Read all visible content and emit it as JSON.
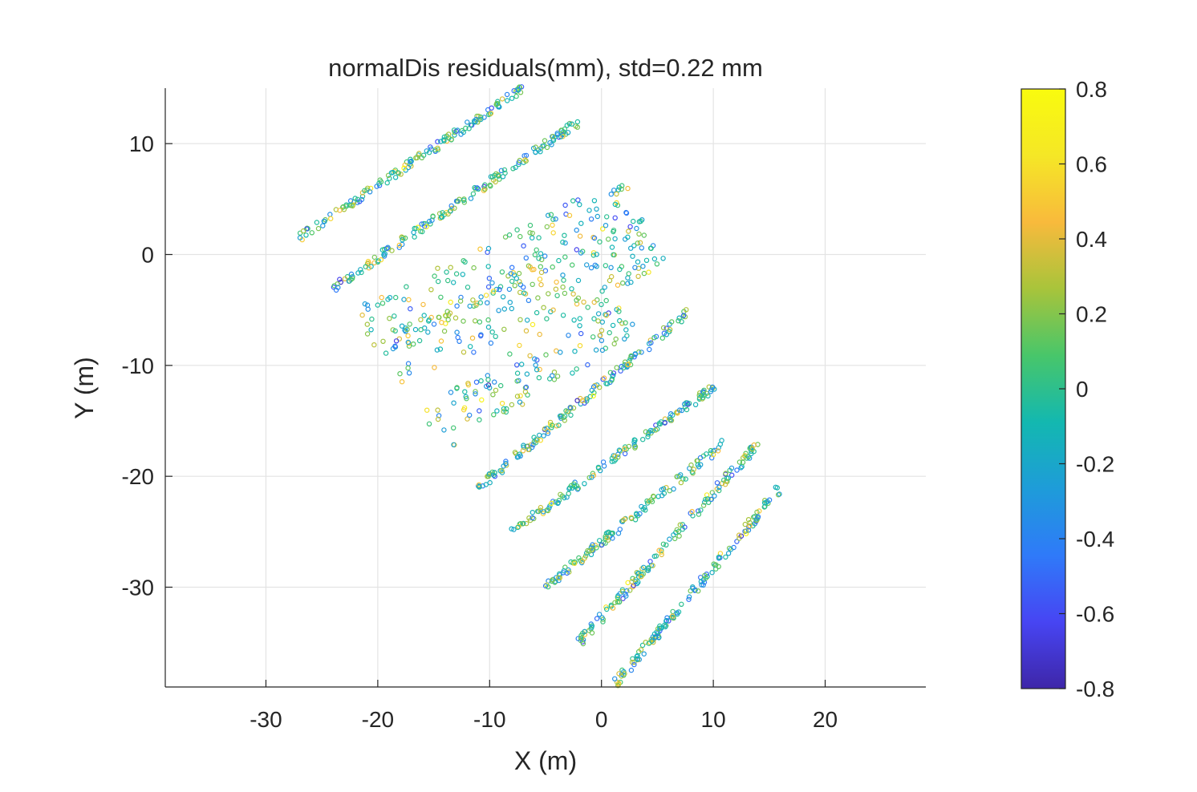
{
  "chart_data": {
    "type": "scatter",
    "title": "normalDis residuals(mm), std=0.22 mm",
    "xlabel": "X (m)",
    "ylabel": "Y (m)",
    "xlim": [
      -39,
      29
    ],
    "ylim": [
      -39,
      15
    ],
    "xticks": [
      -30,
      -20,
      -10,
      0,
      10,
      20
    ],
    "yticks": [
      10,
      0,
      -10,
      -20,
      -30
    ],
    "xtick_labels": [
      "-30",
      "-20",
      "-10",
      "0",
      "10",
      "20"
    ],
    "ytick_labels": [
      "10",
      "0",
      "-10",
      "-20",
      "-30"
    ],
    "grid": true,
    "marker": "open-circle",
    "colorbar": {
      "limits": [
        -0.8,
        0.8
      ],
      "ticks": [
        0.8,
        0.6,
        0.4,
        0.2,
        0,
        -0.2,
        -0.4,
        -0.6,
        -0.8
      ],
      "tick_labels": [
        "0.8",
        "0.6",
        "0.4",
        "0.2",
        "0",
        "-0.2",
        "-0.4",
        "-0.6",
        "-0.8"
      ],
      "colormap": "parula",
      "colors": [
        "#3e26a8",
        "#4745f3",
        "#2f7af9",
        "#1e9cd9",
        "#13b8b0",
        "#48c66a",
        "#a8c43b",
        "#f8ba3c",
        "#f5e726",
        "#f9fb0e"
      ]
    },
    "series": [
      {
        "segments": [
          {
            "from": [
              -27,
              1.5
            ],
            "to": [
              -7,
              15
            ]
          },
          {
            "from": [
              -24,
              -3
            ],
            "to": [
              -2,
              12
            ]
          },
          {
            "from": [
              -21,
              -7
            ],
            "to": [
              3,
              5
            ]
          },
          {
            "from": [
              -19,
              -10
            ],
            "to": [
              5,
              1
            ]
          },
          {
            "from": [
              -15,
              -16
            ],
            "to": [
              2,
              -5
            ]
          },
          {
            "from": [
              -11,
              -21
            ],
            "to": [
              8,
              -5
            ]
          },
          {
            "from": [
              -8,
              -25
            ],
            "to": [
              10,
              -12
            ]
          },
          {
            "from": [
              -5,
              -30
            ],
            "to": [
              11,
              -17
            ]
          },
          {
            "from": [
              -2,
              -35
            ],
            "to": [
              14,
              -17
            ]
          },
          {
            "from": [
              1,
              -39
            ],
            "to": [
              16,
              -21
            ]
          }
        ]
      }
    ]
  }
}
